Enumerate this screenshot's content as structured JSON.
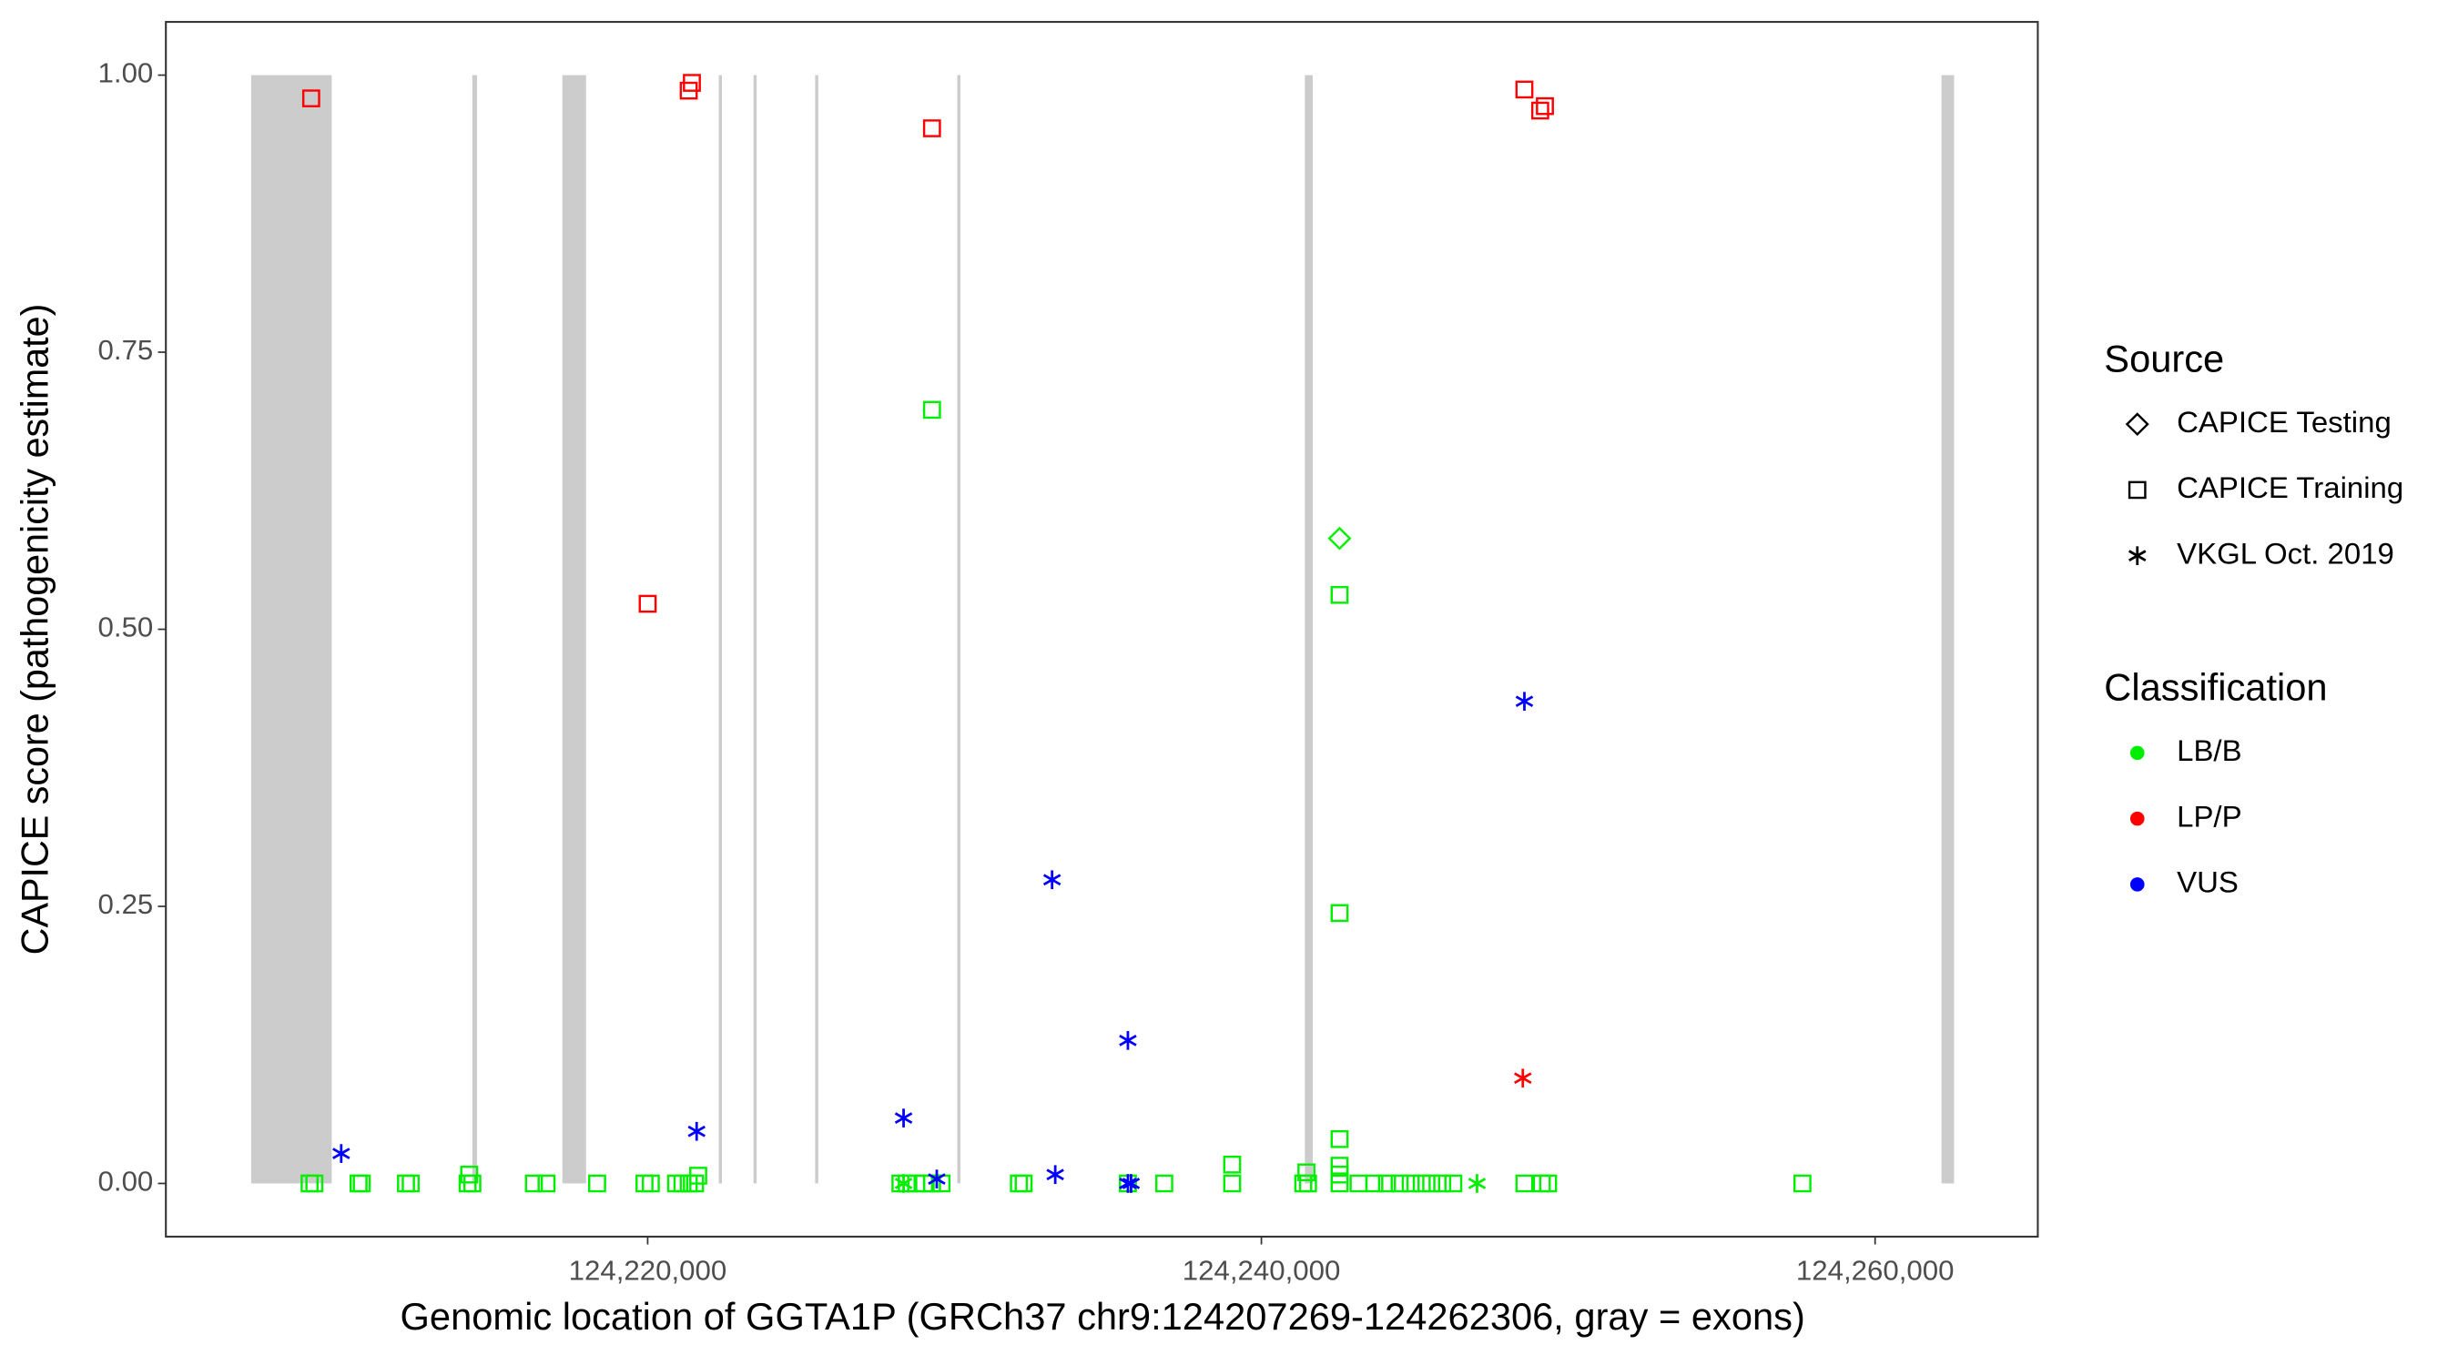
{
  "chart_data": {
    "type": "scatter",
    "x_label": "Genomic location of GGTA1P (GRCh37 chr9:124207269-124262306, gray = exons)",
    "y_label": "CAPICE score (pathogenicity estimate)",
    "xlim": [
      124204299,
      124265302
    ],
    "ylim": [
      -0.048,
      1.048
    ],
    "xticks": [
      {
        "value": 124220000,
        "label": "124,220,000"
      },
      {
        "value": 124240000,
        "label": "124,240,000"
      },
      {
        "value": 124260000,
        "label": "124,260,000"
      }
    ],
    "yticks": [
      {
        "value": 0,
        "label": "0.00"
      },
      {
        "value": 0.25,
        "label": "0.25"
      },
      {
        "value": 0.5,
        "label": "0.50"
      },
      {
        "value": 0.75,
        "label": "0.75"
      },
      {
        "value": 1,
        "label": "1.00"
      }
    ],
    "grid": false,
    "exon_color": "#cccccc",
    "exons": [
      [
        124207078,
        124209704
      ],
      [
        124214286,
        124214440
      ],
      [
        124217220,
        124217992
      ],
      [
        124222317,
        124222420
      ],
      [
        124223449,
        124223552
      ],
      [
        124225457,
        124225560
      ],
      [
        124230090,
        124230193
      ],
      [
        124241416,
        124241673
      ],
      [
        124262162,
        124262574
      ]
    ],
    "legend": {
      "position": "right",
      "source": {
        "title": "Source",
        "entries": [
          {
            "name": "CAPICE Testing",
            "shape": "diamond"
          },
          {
            "name": "CAPICE Training",
            "shape": "square"
          },
          {
            "name": "VKGL Oct. 2019",
            "shape": "asterisk"
          }
        ]
      },
      "classification": {
        "title": "Classification",
        "entries": [
          {
            "name": "LB/B",
            "color": "#00ee00"
          },
          {
            "name": "LP/P",
            "color": "#ff0000"
          },
          {
            "name": "VUS",
            "color": "#0000ff"
          }
        ]
      }
    },
    "series": [
      {
        "source": "CAPICE Training",
        "classification": "LP/P",
        "x": [
          124209035,
          124220000,
          124221338,
          124221441,
          124229266,
          124248571,
          124249086,
          124249240
        ],
        "y": [
          0.979,
          0.523,
          0.986,
          0.993,
          0.952,
          0.987,
          0.968,
          0.972
        ]
      },
      {
        "source": "VKGL Oct. 2019",
        "classification": "LP/P",
        "x": [
          124248520
        ],
        "y": [
          0.095
        ]
      },
      {
        "source": "CAPICE Testing",
        "classification": "LB/B",
        "x": [
          124242548
        ],
        "y": [
          0.582
        ]
      },
      {
        "source": "CAPICE Training",
        "classification": "LB/B",
        "x": [
          124229266,
          124242548,
          124242548,
          124242548,
          124242548,
          124242548,
          124214183,
          124239047,
          124241467,
          124221647,
          124208983,
          124209138,
          124210579,
          124210682,
          124212124,
          124212278,
          124214131,
          124214286,
          124216293,
          124216705,
          124218353,
          124219897,
          124220103,
          124220927,
          124221133,
          124221338,
          124221544,
          124228237,
          124228443,
          124228752,
          124229009,
          124229266,
          124229575,
          124232098,
          124232252,
          124235650,
          124236834,
          124239048,
          124241364,
          124241519,
          124242548,
          124243166,
          124243681,
          124244093,
          124244504,
          124244865,
          124245225,
          124245534,
          124245894,
          124246255,
          124248571,
          124249138,
          124249344,
          124257632
        ],
        "y": [
          0.698,
          0.531,
          0.244,
          0.04,
          0.016,
          0.008,
          0.008,
          0.017,
          0.01,
          0.007,
          0,
          0,
          0,
          0,
          0,
          0,
          0,
          0,
          0,
          0,
          0,
          0,
          0,
          0,
          0,
          0,
          0,
          0,
          0,
          0,
          0,
          0,
          0,
          0,
          0,
          0,
          0,
          0,
          0,
          0,
          0,
          0,
          0,
          0,
          0,
          0,
          0,
          0,
          0,
          0,
          0,
          0,
          0,
          0
        ]
      },
      {
        "source": "VKGL Oct. 2019",
        "classification": "LB/B",
        "x": [
          124228340,
          124247027
        ],
        "y": [
          0,
          0
        ]
      },
      {
        "source": "VKGL Oct. 2019",
        "classification": "VUS",
        "x": [
          124210013,
          124221596,
          124228340,
          124229421,
          124233179,
          124233282,
          124235650,
          124235650,
          124235753,
          124248571
        ],
        "y": [
          0.027,
          0.047,
          0.059,
          0.004,
          0.274,
          0.008,
          0.129,
          0,
          0,
          0.435
        ]
      }
    ]
  }
}
